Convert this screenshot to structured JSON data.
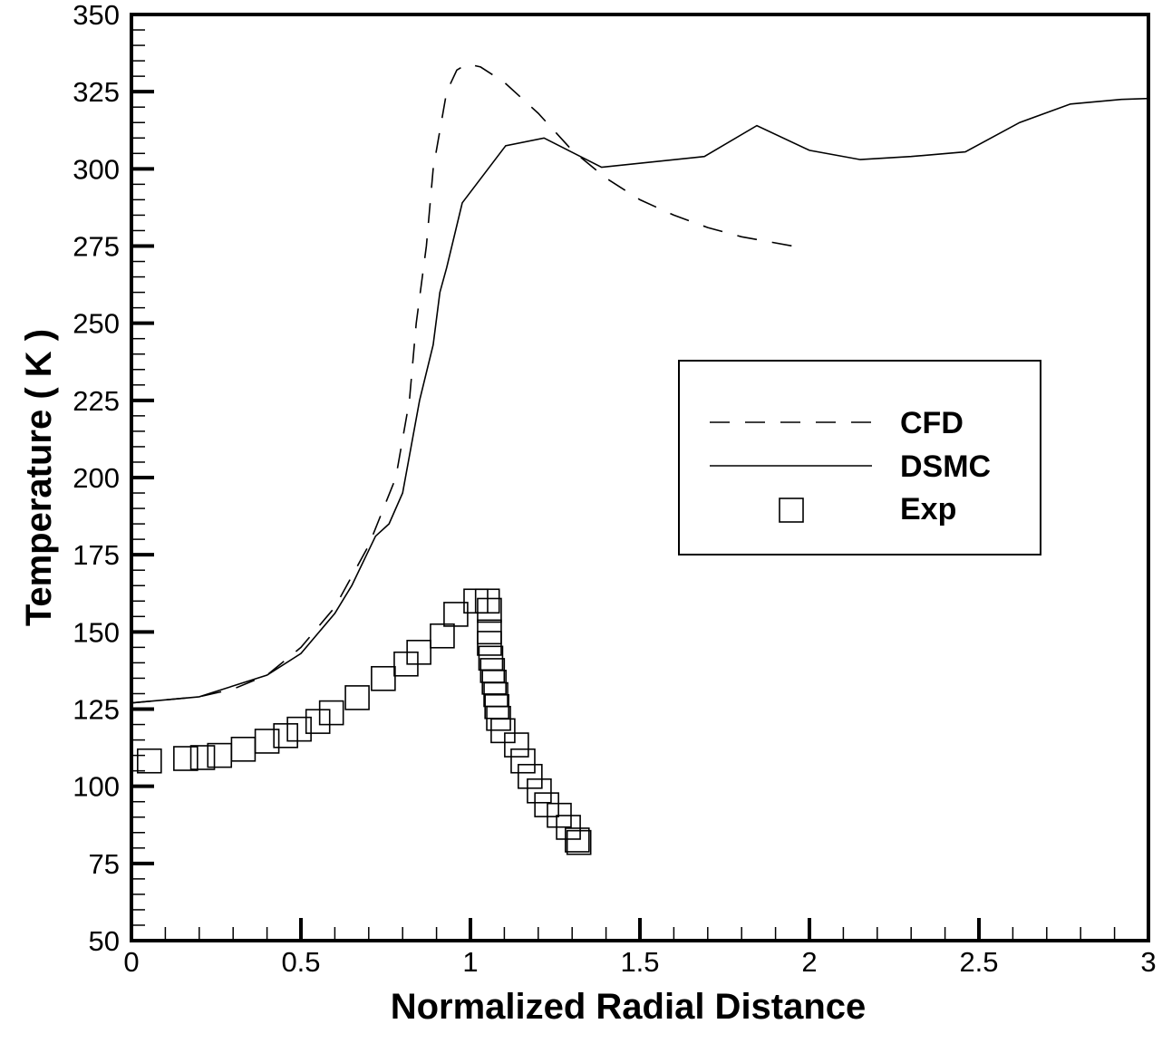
{
  "chart_data": {
    "type": "line",
    "xlabel": "Normalized Radial Distance",
    "ylabel": "Temperature ( K )",
    "xlim": [
      0,
      3
    ],
    "ylim": [
      50,
      350
    ],
    "x_ticks": [
      "0",
      "0.5",
      "1",
      "1.5",
      "2",
      "2.5",
      "3"
    ],
    "x_tick_values": [
      0,
      0.5,
      1,
      1.5,
      2,
      2.5,
      3
    ],
    "y_ticks": [
      "50",
      "75",
      "100",
      "125",
      "150",
      "175",
      "200",
      "225",
      "250",
      "275",
      "300",
      "325",
      "350"
    ],
    "y_tick_values": [
      50,
      75,
      100,
      125,
      150,
      175,
      200,
      225,
      250,
      275,
      300,
      325,
      350
    ],
    "x_minor_step": 0.1,
    "y_minor_step": 5,
    "grid": false,
    "legend_position": "right-middle",
    "series": [
      {
        "name": "CFD",
        "style": "dashed",
        "color": "#000000",
        "x": [
          0,
          0.2,
          0.3,
          0.4,
          0.5,
          0.6,
          0.7,
          0.78,
          0.82,
          0.84,
          0.87,
          0.89,
          0.93,
          0.96,
          0.99,
          1.03,
          1.1,
          1.2,
          1.3,
          1.4,
          1.5,
          1.6,
          1.7,
          1.8,
          1.95
        ],
        "y": [
          127,
          129,
          131.5,
          136,
          145,
          158,
          178,
          200,
          225,
          250,
          275,
          300,
          325,
          332,
          334,
          333,
          328,
          318,
          306,
          297,
          290,
          285,
          281,
          278,
          275
        ]
      },
      {
        "name": "DSMC",
        "style": "solid",
        "color": "#000000",
        "x": [
          0,
          0.2,
          0.4,
          0.5,
          0.6,
          0.65,
          0.72,
          0.76,
          0.8,
          0.85,
          0.89,
          0.91,
          0.93,
          0.976,
          1.104,
          1.217,
          1.387,
          1.69,
          1.845,
          2.0,
          2.15,
          2.3,
          2.46,
          2.62,
          2.77,
          2.92,
          3.0
        ],
        "y": [
          127,
          129,
          136,
          143,
          156,
          165,
          181,
          185,
          195,
          225,
          243,
          260,
          268,
          289,
          307.5,
          310,
          300.5,
          304,
          314,
          306,
          303,
          304,
          305.5,
          315,
          321,
          322.5,
          322.8
        ]
      },
      {
        "name": "Exp",
        "style": "square-markers",
        "color": "#000000",
        "x": [
          0.053,
          0.16,
          0.21,
          0.26,
          0.33,
          0.4,
          0.455,
          0.495,
          0.55,
          0.59,
          0.666,
          0.743,
          0.81,
          0.848,
          0.917,
          0.957,
          1.016,
          1.05,
          1.056,
          1.056,
          1.056,
          1.06,
          1.065,
          1.07,
          1.075,
          1.078,
          1.083,
          1.096,
          1.136,
          1.155,
          1.176,
          1.203,
          1.225,
          1.262,
          1.289,
          1.315,
          1.32
        ],
        "y": [
          108.2,
          109,
          109.3,
          110,
          112,
          114.6,
          116.4,
          118.5,
          121,
          123.8,
          128.7,
          134.9,
          139.6,
          143.4,
          148.7,
          155.7,
          160,
          160,
          157,
          150,
          146.3,
          141.5,
          137.5,
          133.7,
          129.7,
          125.8,
          122,
          118,
          113.4,
          108.2,
          103.2,
          98.5,
          94,
          90.6,
          86.7,
          82.6,
          81.8
        ]
      }
    ]
  }
}
